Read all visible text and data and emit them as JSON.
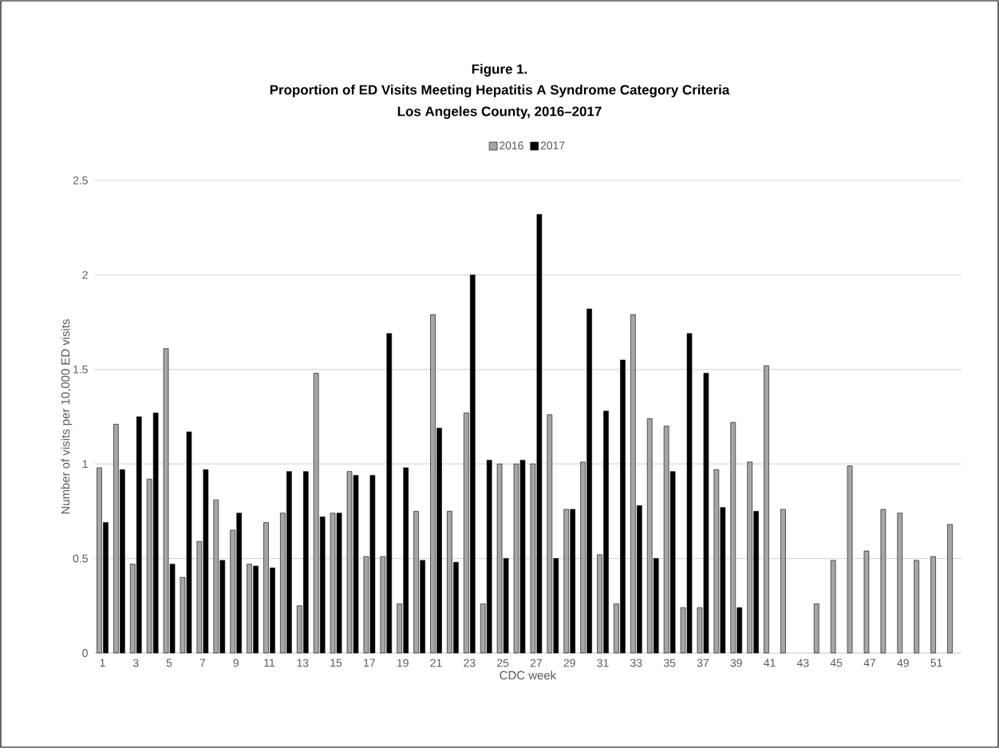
{
  "chart_data": {
    "type": "bar",
    "title": "Figure 1.",
    "subtitle": "Proportion of ED Visits Meeting Hepatitis A Syndrome Category Criteria",
    "annotations": [
      "Los Angeles County, 2016–2017"
    ],
    "xlabel": "CDC week",
    "ylabel": "Number of visits per 10,000 ED visits",
    "categories": [
      "1",
      null,
      "3",
      null,
      "5",
      null,
      "7",
      null,
      "9",
      null,
      "11",
      null,
      "13",
      null,
      "15",
      null,
      "17",
      null,
      "19",
      null,
      "21",
      null,
      "23",
      null,
      "25",
      null,
      "27",
      null,
      "29",
      null,
      "31",
      null,
      "33",
      null,
      "35",
      null,
      "37",
      null,
      "39",
      null,
      "41",
      null,
      "43",
      null,
      "45",
      null,
      "47",
      null,
      "49",
      null,
      "51",
      null
    ],
    "series": [
      {
        "name": "2016",
        "color": "#a6a6a6",
        "values": [
          0.98,
          1.21,
          0.47,
          0.92,
          1.61,
          0.4,
          0.59,
          0.81,
          0.65,
          0.47,
          0.69,
          0.74,
          0.25,
          1.48,
          0.74,
          0.96,
          0.51,
          0.51,
          0.26,
          0.75,
          1.79,
          0.75,
          1.27,
          0.26,
          1.0,
          1.0,
          1.0,
          1.26,
          0.76,
          1.01,
          0.52,
          0.26,
          1.79,
          1.24,
          1.2,
          0.24,
          0.24,
          0.97,
          1.22,
          1.01,
          1.52,
          0.76,
          null,
          0.26,
          0.49,
          0.99,
          0.54,
          0.76,
          0.74,
          0.49,
          0.51,
          0.68
        ]
      },
      {
        "name": "2017",
        "color": "#000000",
        "values": [
          0.69,
          0.97,
          1.25,
          1.27,
          0.47,
          1.17,
          0.97,
          0.49,
          0.74,
          0.46,
          0.45,
          0.96,
          0.96,
          0.72,
          0.74,
          0.94,
          0.94,
          1.69,
          0.98,
          0.49,
          1.19,
          0.48,
          2.0,
          1.02,
          0.5,
          1.02,
          2.32,
          0.5,
          0.76,
          1.82,
          1.28,
          1.55,
          0.78,
          0.5,
          0.96,
          1.69,
          1.48,
          0.77,
          0.24,
          0.75,
          null,
          null,
          null,
          null,
          null,
          null,
          null,
          null,
          null,
          null,
          null,
          null
        ]
      }
    ],
    "ylim": [
      0,
      2.5
    ],
    "yticks": [
      0,
      0.5,
      1,
      1.5,
      2,
      2.5
    ],
    "grid": "y",
    "legend": "top"
  }
}
